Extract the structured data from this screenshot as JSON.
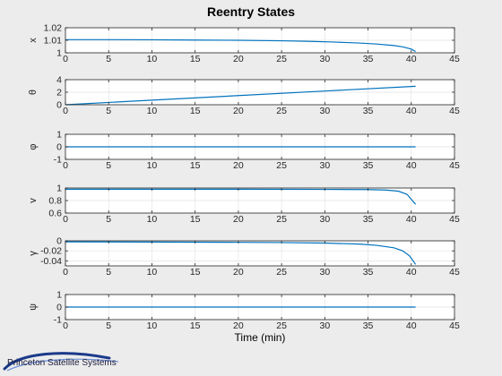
{
  "chart_data": {
    "type": "line",
    "title": "Reentry States",
    "xlabel": "Time (min)",
    "xlim": [
      0,
      45
    ],
    "xticks": [
      0,
      5,
      10,
      15,
      20,
      25,
      30,
      35,
      40,
      45
    ],
    "grid": true,
    "line_color": "#0072bd",
    "subplots": [
      {
        "ylabel": "x",
        "ylim": [
          1,
          1.02
        ],
        "yticks": [
          1,
          1.01,
          1.02
        ],
        "ytick_labels": [
          "1",
          "1.01",
          "1.02"
        ],
        "x": [
          0,
          5,
          10,
          15,
          20,
          25,
          28,
          31,
          34,
          36,
          38,
          39,
          40,
          40.5
        ],
        "y": [
          1.0105,
          1.0105,
          1.0104,
          1.0102,
          1.01,
          1.0096,
          1.0092,
          1.0086,
          1.0078,
          1.007,
          1.0058,
          1.0048,
          1.003,
          1.001
        ]
      },
      {
        "ylabel": "θ",
        "ylim": [
          0,
          4
        ],
        "yticks": [
          0,
          2,
          4
        ],
        "ytick_labels": [
          "0",
          "2",
          "4"
        ],
        "x": [
          0,
          10,
          20,
          30,
          40.5
        ],
        "y": [
          0,
          0.73,
          1.46,
          2.19,
          2.95
        ]
      },
      {
        "ylabel": "φ",
        "ylim": [
          -1,
          1
        ],
        "yticks": [
          -1,
          0,
          1
        ],
        "ytick_labels": [
          "-1",
          "0",
          "1"
        ],
        "x": [
          0,
          40.5
        ],
        "y": [
          0,
          0
        ]
      },
      {
        "ylabel": "v",
        "ylim": [
          0.6,
          1
        ],
        "yticks": [
          0.6,
          0.8,
          1
        ],
        "ytick_labels": [
          "0.6",
          "0.8",
          "1"
        ],
        "x": [
          0,
          10,
          20,
          30,
          35,
          37,
          38.5,
          39.5,
          40,
          40.5
        ],
        "y": [
          0.98,
          0.98,
          0.98,
          0.978,
          0.975,
          0.968,
          0.95,
          0.9,
          0.82,
          0.74
        ]
      },
      {
        "ylabel": "γ",
        "ylim": [
          -0.05,
          0
        ],
        "yticks": [
          -0.04,
          -0.02,
          0
        ],
        "ytick_labels": [
          "-0.04",
          "-0.02",
          "0"
        ],
        "x": [
          0,
          10,
          20,
          25,
          30,
          34,
          36,
          38,
          39,
          39.8,
          40.5
        ],
        "y": [
          -0.002,
          -0.0025,
          -0.003,
          -0.0035,
          -0.0045,
          -0.0065,
          -0.009,
          -0.014,
          -0.02,
          -0.03,
          -0.047
        ]
      },
      {
        "ylabel": "ψ",
        "ylim": [
          -1,
          1
        ],
        "yticks": [
          -1,
          0,
          1
        ],
        "ytick_labels": [
          "-1",
          "0",
          "1"
        ],
        "x": [
          0,
          40.5
        ],
        "y": [
          0,
          0
        ]
      }
    ]
  },
  "logo": {
    "text": "Princeton Satellite Systems",
    "icon": "orbit-swoosh-icon"
  }
}
